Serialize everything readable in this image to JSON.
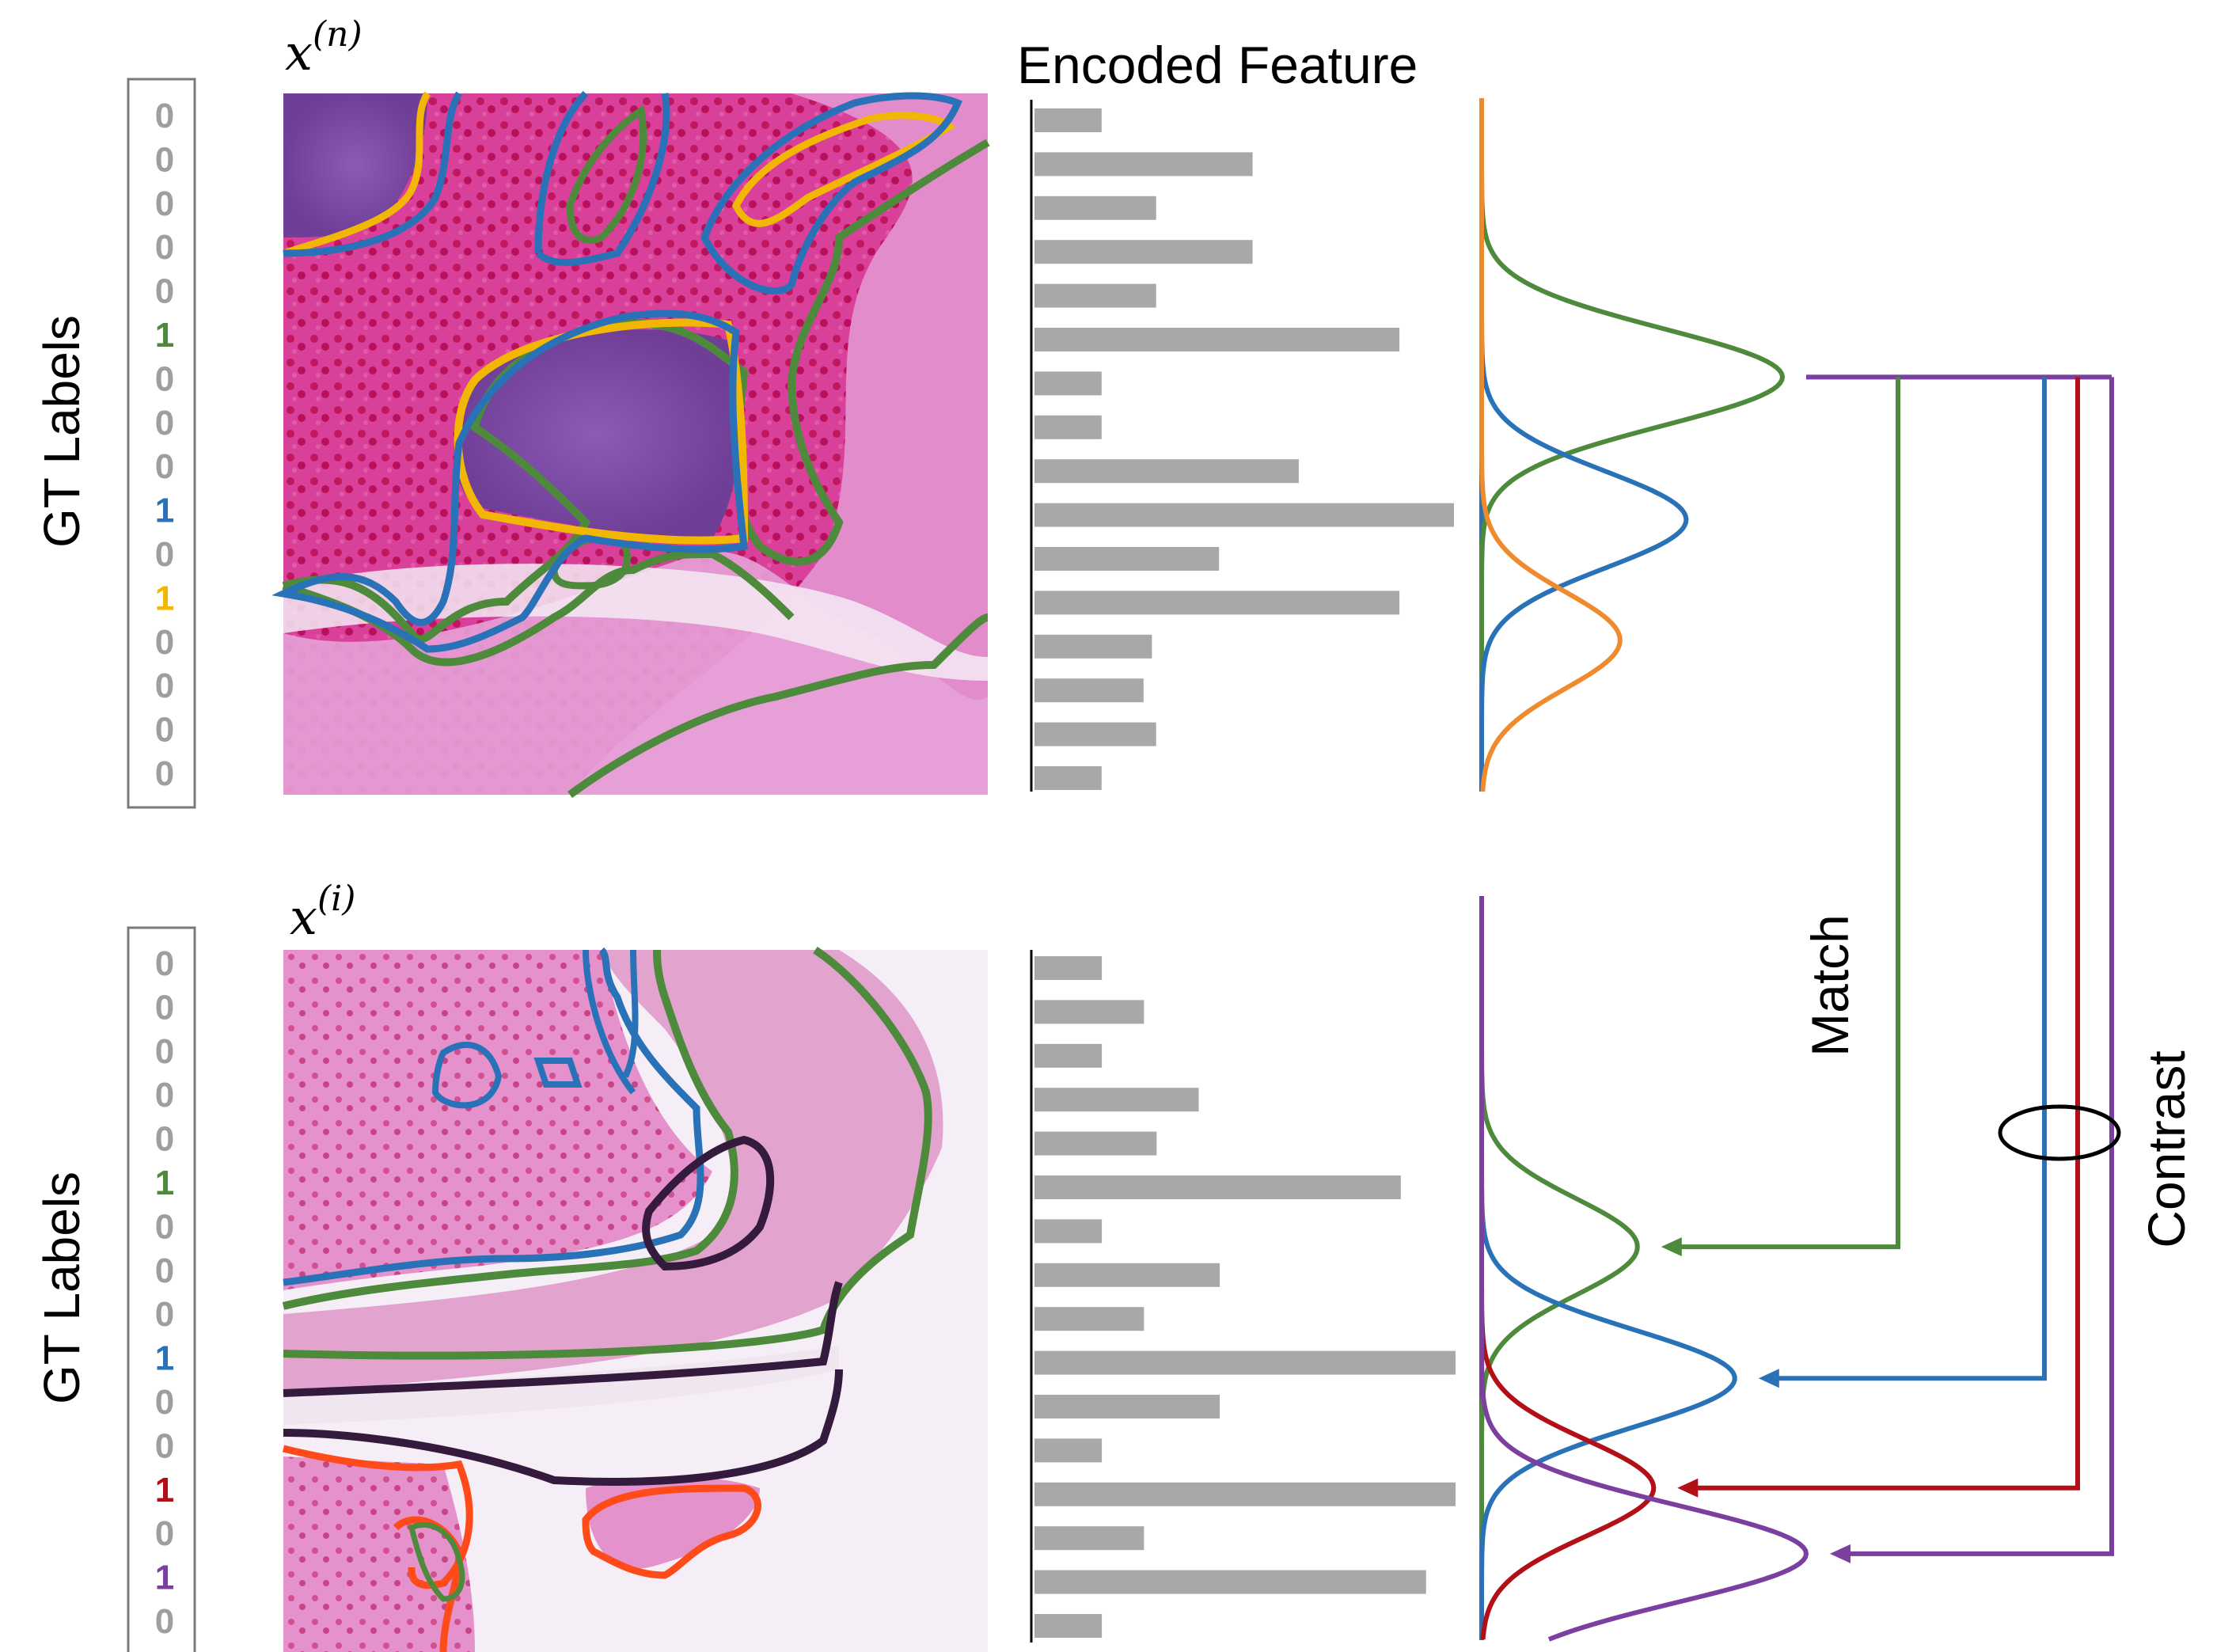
{
  "title": "Encoded Feature",
  "gt_labels_text": "GT Labels",
  "match_label": "Match",
  "contrast_label": "Contrast",
  "colors": {
    "green": "#4e8a3b",
    "blue": "#2a72b8",
    "yellow": "#f2b705",
    "orange": "#f08a2e",
    "red": "#b30f16",
    "purple": "#7b3fa0",
    "gray": "#aaa7a7",
    "label_gray": "#9e9e9e"
  },
  "panels": [
    {
      "sample_label": "x",
      "sample_superscript": "(n)",
      "gt_labels": [
        "0",
        "0",
        "0",
        "0",
        "0",
        "1",
        "0",
        "0",
        "0",
        "1",
        "0",
        "1",
        "0",
        "0",
        "0",
        "0"
      ],
      "gt_label_colors": [
        "gray",
        "gray",
        "gray",
        "gray",
        "gray",
        "green",
        "gray",
        "gray",
        "gray",
        "blue",
        "gray",
        "yellow",
        "gray",
        "gray",
        "gray",
        "gray"
      ],
      "feature_values": [
        0.16,
        0.52,
        0.29,
        0.52,
        0.29,
        0.87,
        0.16,
        0.16,
        0.63,
        1.0,
        0.44,
        0.87,
        0.28,
        0.26,
        0.29,
        0.16
      ],
      "distributions": [
        {
          "color": "green",
          "mean_row": 6.0,
          "amplitude": 1.0
        },
        {
          "color": "blue",
          "mean_row": 9.25,
          "amplitude": 0.68
        },
        {
          "color": "orange",
          "mean_row": 12.0,
          "amplitude": 0.46
        }
      ]
    },
    {
      "sample_label": "x",
      "sample_superscript": "(i)",
      "gt_labels": [
        "0",
        "0",
        "0",
        "0",
        "0",
        "1",
        "0",
        "0",
        "0",
        "1",
        "0",
        "0",
        "1",
        "0",
        "1",
        "0"
      ],
      "gt_label_colors": [
        "gray",
        "gray",
        "gray",
        "gray",
        "gray",
        "green",
        "gray",
        "gray",
        "gray",
        "blue",
        "gray",
        "gray",
        "red",
        "gray",
        "purple",
        "gray"
      ],
      "feature_values": [
        0.16,
        0.26,
        0.16,
        0.39,
        0.29,
        0.87,
        0.16,
        0.44,
        0.26,
        1.0,
        0.44,
        0.16,
        1.0,
        0.26,
        0.93,
        0.16
      ],
      "distributions": [
        {
          "color": "green",
          "mean_row": 6.5,
          "amplitude": 0.48
        },
        {
          "color": "blue",
          "mean_row": 9.5,
          "amplitude": 0.78
        },
        {
          "color": "red",
          "mean_row": 12.0,
          "amplitude": 0.53
        },
        {
          "color": "purple",
          "mean_row": 13.5,
          "amplitude": 1.0
        }
      ]
    }
  ],
  "arrows": [
    {
      "name": "match-arrow",
      "color": "green",
      "target_distribution": "green"
    },
    {
      "name": "contrast-arrow-blue",
      "color": "blue",
      "target_distribution": "blue"
    },
    {
      "name": "contrast-arrow-red",
      "color": "red",
      "target_distribution": "red"
    },
    {
      "name": "contrast-arrow-purple",
      "color": "purple",
      "target_distribution": "purple"
    }
  ]
}
